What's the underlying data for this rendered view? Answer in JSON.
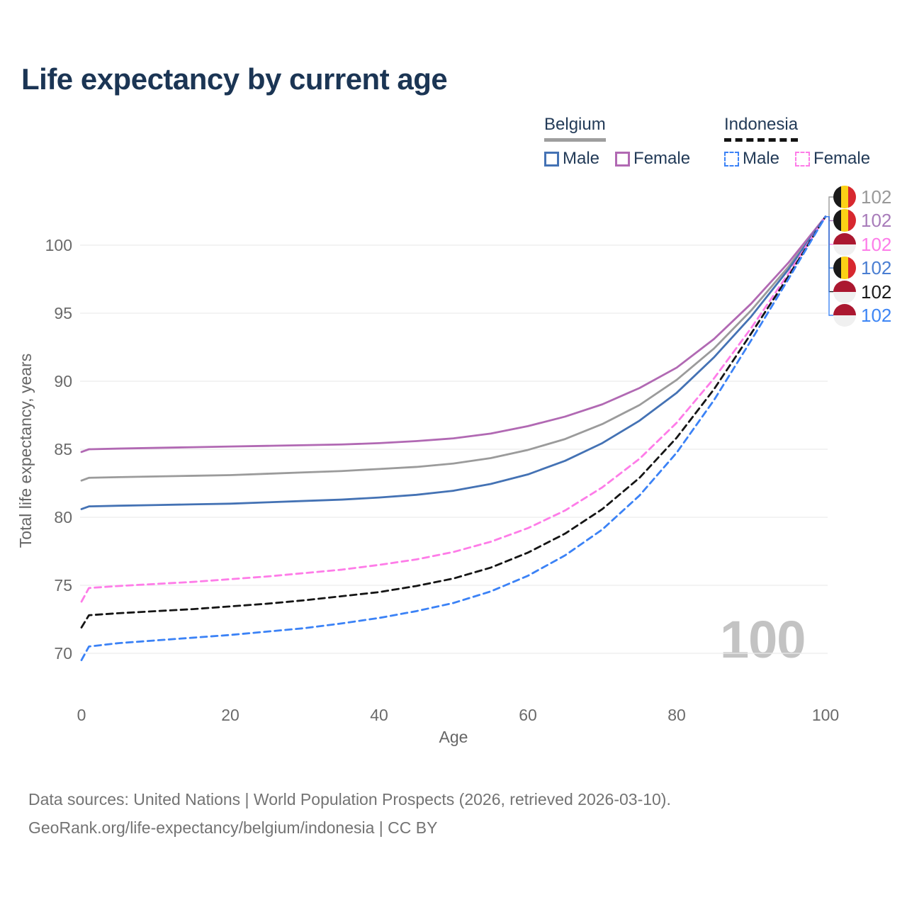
{
  "title": "Life expectancy by current age",
  "legend": {
    "groups": [
      {
        "label": "Belgium",
        "line_style": "solid",
        "underline_color": "#9e9e9e",
        "items": [
          {
            "label": "Male",
            "color": "#4472b4",
            "dashed": false
          },
          {
            "label": "Female",
            "color": "#b169b3",
            "dashed": false
          }
        ]
      },
      {
        "label": "Indonesia",
        "line_style": "dashed",
        "underline_color": "#141414",
        "items": [
          {
            "label": "Male",
            "color": "#3b82f6",
            "dashed": true
          },
          {
            "label": "Female",
            "color": "#fe7ce8",
            "dashed": true
          }
        ]
      }
    ]
  },
  "watermark": "100",
  "footer": {
    "line1": "Data sources: United Nations | World Population Prospects (2026, retrieved 2026-03-10).",
    "line2": "GeoRank.org/life-expectancy/belgium/indonesia | CC BY"
  },
  "chart_data": {
    "type": "line",
    "title": "Life expectancy by current age",
    "xlabel": "Age",
    "ylabel": "Total life expectancy, years",
    "x_ticks": [
      0,
      20,
      40,
      60,
      80,
      100
    ],
    "y_ticks": [
      70,
      75,
      80,
      85,
      90,
      95,
      100
    ],
    "xlim": [
      0,
      100
    ],
    "ylim_displayed": [
      66.5,
      104
    ],
    "grid": "horizontal",
    "gridline_color": "#ececec",
    "tick_color": "#6a6a6a",
    "ages": [
      0,
      1,
      5,
      10,
      15,
      20,
      25,
      30,
      35,
      40,
      45,
      50,
      55,
      60,
      65,
      70,
      75,
      80,
      85,
      90,
      95,
      100
    ],
    "series": [
      {
        "name": "Belgium",
        "country": "Belgium",
        "sex": "both",
        "flag": "belgium",
        "color": "#9b9b9b",
        "dashed": false,
        "label_row": 0,
        "end_label": "102",
        "end_label_color": "#999999",
        "values": [
          82.7,
          82.9,
          82.95,
          83.0,
          83.05,
          83.1,
          83.2,
          83.3,
          83.4,
          83.55,
          83.7,
          83.95,
          84.35,
          84.95,
          85.75,
          86.85,
          88.25,
          90.1,
          92.4,
          95.2,
          98.4,
          102.1
        ]
      },
      {
        "name": "Belgium Female",
        "country": "Belgium",
        "sex": "female",
        "flag": "belgium",
        "color": "#b169b3",
        "dashed": false,
        "label_row": 1,
        "end_label": "102",
        "end_label_color": "#a87cba",
        "values": [
          84.8,
          85.0,
          85.05,
          85.1,
          85.15,
          85.2,
          85.25,
          85.3,
          85.35,
          85.45,
          85.6,
          85.8,
          86.15,
          86.7,
          87.4,
          88.3,
          89.5,
          91.0,
          93.1,
          95.7,
          98.7,
          102.1
        ]
      },
      {
        "name": "Belgium Male",
        "country": "Belgium",
        "sex": "male",
        "flag": "belgium",
        "color": "#4472b4",
        "dashed": false,
        "label_row": 3,
        "end_label": "102",
        "end_label_color": "#4a7ed2",
        "values": [
          80.6,
          80.8,
          80.85,
          80.9,
          80.95,
          81.0,
          81.1,
          81.2,
          81.3,
          81.45,
          81.65,
          81.95,
          82.45,
          83.15,
          84.15,
          85.45,
          87.1,
          89.15,
          91.75,
          94.75,
          98.2,
          102.1
        ]
      },
      {
        "name": "Indonesia Female",
        "country": "Indonesia",
        "sex": "female",
        "flag": "indonesia",
        "color": "#fe7ce8",
        "dashed": true,
        "label_row": 2,
        "end_label": "102",
        "end_label_color": "#fd7de9",
        "values": [
          73.8,
          74.8,
          74.95,
          75.1,
          75.25,
          75.45,
          75.65,
          75.9,
          76.15,
          76.5,
          76.9,
          77.45,
          78.2,
          79.2,
          80.5,
          82.2,
          84.3,
          86.95,
          90.2,
          93.9,
          97.9,
          102.1
        ]
      },
      {
        "name": "Indonesia",
        "country": "Indonesia",
        "sex": "both",
        "flag": "indonesia",
        "color": "#151515",
        "dashed": true,
        "label_row": 4,
        "end_label": "102",
        "end_label_color": "#1a1a1a",
        "values": [
          71.9,
          72.8,
          72.95,
          73.1,
          73.25,
          73.45,
          73.65,
          73.9,
          74.2,
          74.5,
          74.95,
          75.5,
          76.3,
          77.4,
          78.8,
          80.6,
          82.9,
          85.85,
          89.4,
          93.5,
          97.7,
          102.1
        ]
      },
      {
        "name": "Indonesia Male",
        "country": "Indonesia",
        "sex": "male",
        "flag": "indonesia",
        "color": "#3b82f6",
        "dashed": true,
        "label_row": 5,
        "end_label": "102",
        "end_label_color": "#3e86f5",
        "values": [
          69.5,
          70.5,
          70.75,
          70.95,
          71.15,
          71.35,
          71.6,
          71.85,
          72.2,
          72.6,
          73.1,
          73.7,
          74.55,
          75.7,
          77.2,
          79.1,
          81.6,
          84.75,
          88.6,
          93.0,
          97.5,
          102.1
        ]
      }
    ],
    "flag_colors": {
      "belgium": [
        "#1a1a1a",
        "#fbd116",
        "#d7282f"
      ],
      "indonesia": [
        "#ab1830",
        "#f0f0f0"
      ]
    }
  }
}
